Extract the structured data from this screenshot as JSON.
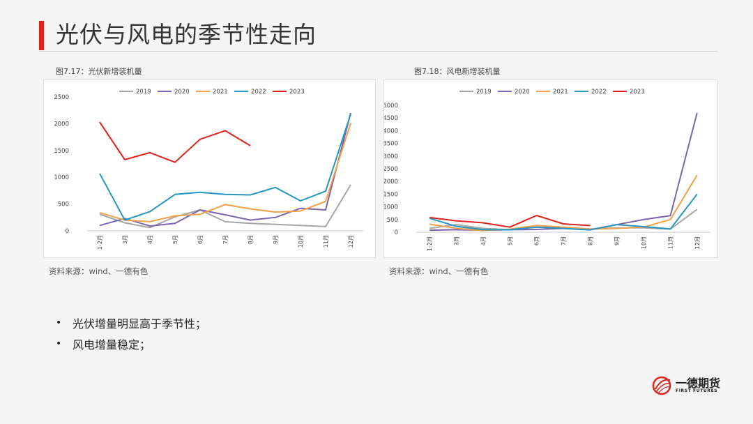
{
  "page": {
    "title": "光伏与风电的季节性走向"
  },
  "figures": [
    {
      "caption": "图7.17：光伏新增装机量",
      "source": "资料来源：wind、一德有色"
    },
    {
      "caption": "图7.18：风电新增装机量",
      "source": "资料来源：wind、一德有色"
    }
  ],
  "bullets": [
    {
      "marker": "•",
      "text": "光伏增量明显高于季节性；"
    },
    {
      "marker": "•",
      "text": "风电增量稳定；"
    }
  ],
  "logo": {
    "cn": "一德期货",
    "en": "FIRST FUTURES"
  },
  "chart_data": [
    {
      "type": "line",
      "title": "",
      "xlabel": "",
      "ylabel": "",
      "legend_position": "top",
      "grid": false,
      "categories": [
        "1-2月",
        "3月",
        "4月",
        "5月",
        "6月",
        "7月",
        "8月",
        "9月",
        "10月",
        "11月",
        "12月"
      ],
      "ylim": [
        0,
        2500
      ],
      "yticks": [
        0,
        500,
        1000,
        1500,
        2000,
        2500
      ],
      "series": [
        {
          "name": "2019",
          "color": "#a5a5a5",
          "values": [
            310,
            150,
            60,
            260,
            390,
            170,
            140,
            120,
            100,
            80,
            860
          ]
        },
        {
          "name": "2020",
          "color": "#7a64b0",
          "values": [
            100,
            230,
            90,
            140,
            390,
            300,
            200,
            250,
            420,
            390,
            2200
          ]
        },
        {
          "name": "2021",
          "color": "#f0a14a",
          "values": [
            340,
            200,
            170,
            280,
            310,
            490,
            410,
            350,
            370,
            550,
            2010
          ]
        },
        {
          "name": "2022",
          "color": "#2596be",
          "values": [
            1070,
            200,
            360,
            680,
            720,
            680,
            670,
            810,
            560,
            740,
            2180
          ]
        },
        {
          "name": "2023",
          "color": "#e0211c",
          "values": [
            2030,
            1330,
            1460,
            1280,
            1710,
            1870,
            1590,
            null,
            null,
            null,
            null
          ]
        }
      ]
    },
    {
      "type": "line",
      "title": "",
      "xlabel": "",
      "ylabel": "",
      "legend_position": "top",
      "grid": false,
      "categories": [
        "1-2月",
        "3月",
        "4月",
        "5月",
        "6月",
        "7月",
        "8月",
        "9月",
        "10月",
        "11月",
        "12月"
      ],
      "ylim": [
        0,
        5000
      ],
      "yticks": [
        0,
        500,
        1000,
        1500,
        2000,
        2500,
        3000,
        3500,
        4000,
        4500,
        5000
      ],
      "series": [
        {
          "name": "2019",
          "color": "#a5a5a5",
          "values": [
            150,
            300,
            150,
            100,
            200,
            180,
            130,
            170,
            170,
            120,
            900
          ]
        },
        {
          "name": "2020",
          "color": "#7a64b0",
          "values": [
            80,
            100,
            80,
            100,
            110,
            150,
            100,
            300,
            500,
            650,
            4700
          ]
        },
        {
          "name": "2021",
          "color": "#f0a14a",
          "values": [
            320,
            150,
            70,
            120,
            270,
            200,
            120,
            150,
            200,
            500,
            2250
          ]
        },
        {
          "name": "2022",
          "color": "#2596be",
          "values": [
            550,
            230,
            100,
            100,
            200,
            150,
            90,
            300,
            220,
            130,
            1500
          ]
        },
        {
          "name": "2023",
          "color": "#e0211c",
          "values": [
            580,
            450,
            370,
            200,
            660,
            330,
            260,
            null,
            null,
            null,
            null
          ]
        }
      ]
    }
  ]
}
